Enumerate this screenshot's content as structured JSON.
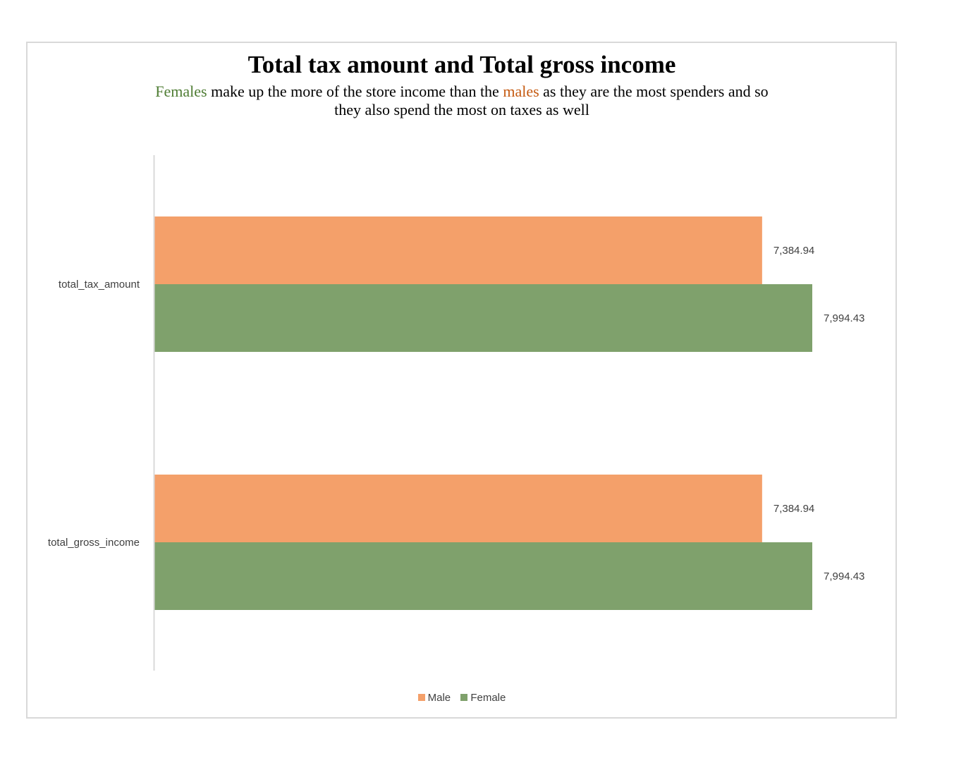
{
  "title": "Total tax amount and Total gross income",
  "subtitle": {
    "line1_word1": "Females",
    "line1_part2": " make up the more of the store income than the ",
    "line1_word2": "males",
    "line1_part3": " as they are the most spenders and so",
    "line2": "they also spend the most on taxes as well"
  },
  "colors": {
    "male": "#f4a06a",
    "female": "#7fa16c",
    "females_word": "#4f7d34",
    "males_word": "#c55a11",
    "axis": "#d9d9d9"
  },
  "chart_data": {
    "type": "bar",
    "orientation": "horizontal",
    "categories": [
      "total_tax_amount",
      "total_gross_income"
    ],
    "series": [
      {
        "name": "Male",
        "values": [
          7384.94,
          7384.94
        ],
        "labels": [
          "7,384.94",
          "7,384.94"
        ]
      },
      {
        "name": "Female",
        "values": [
          7994.43,
          7994.43
        ],
        "labels": [
          "7,994.43",
          "7,994.43"
        ]
      }
    ],
    "xlim": [
      0,
      8000
    ],
    "grid": false,
    "legend_position": "bottom"
  }
}
